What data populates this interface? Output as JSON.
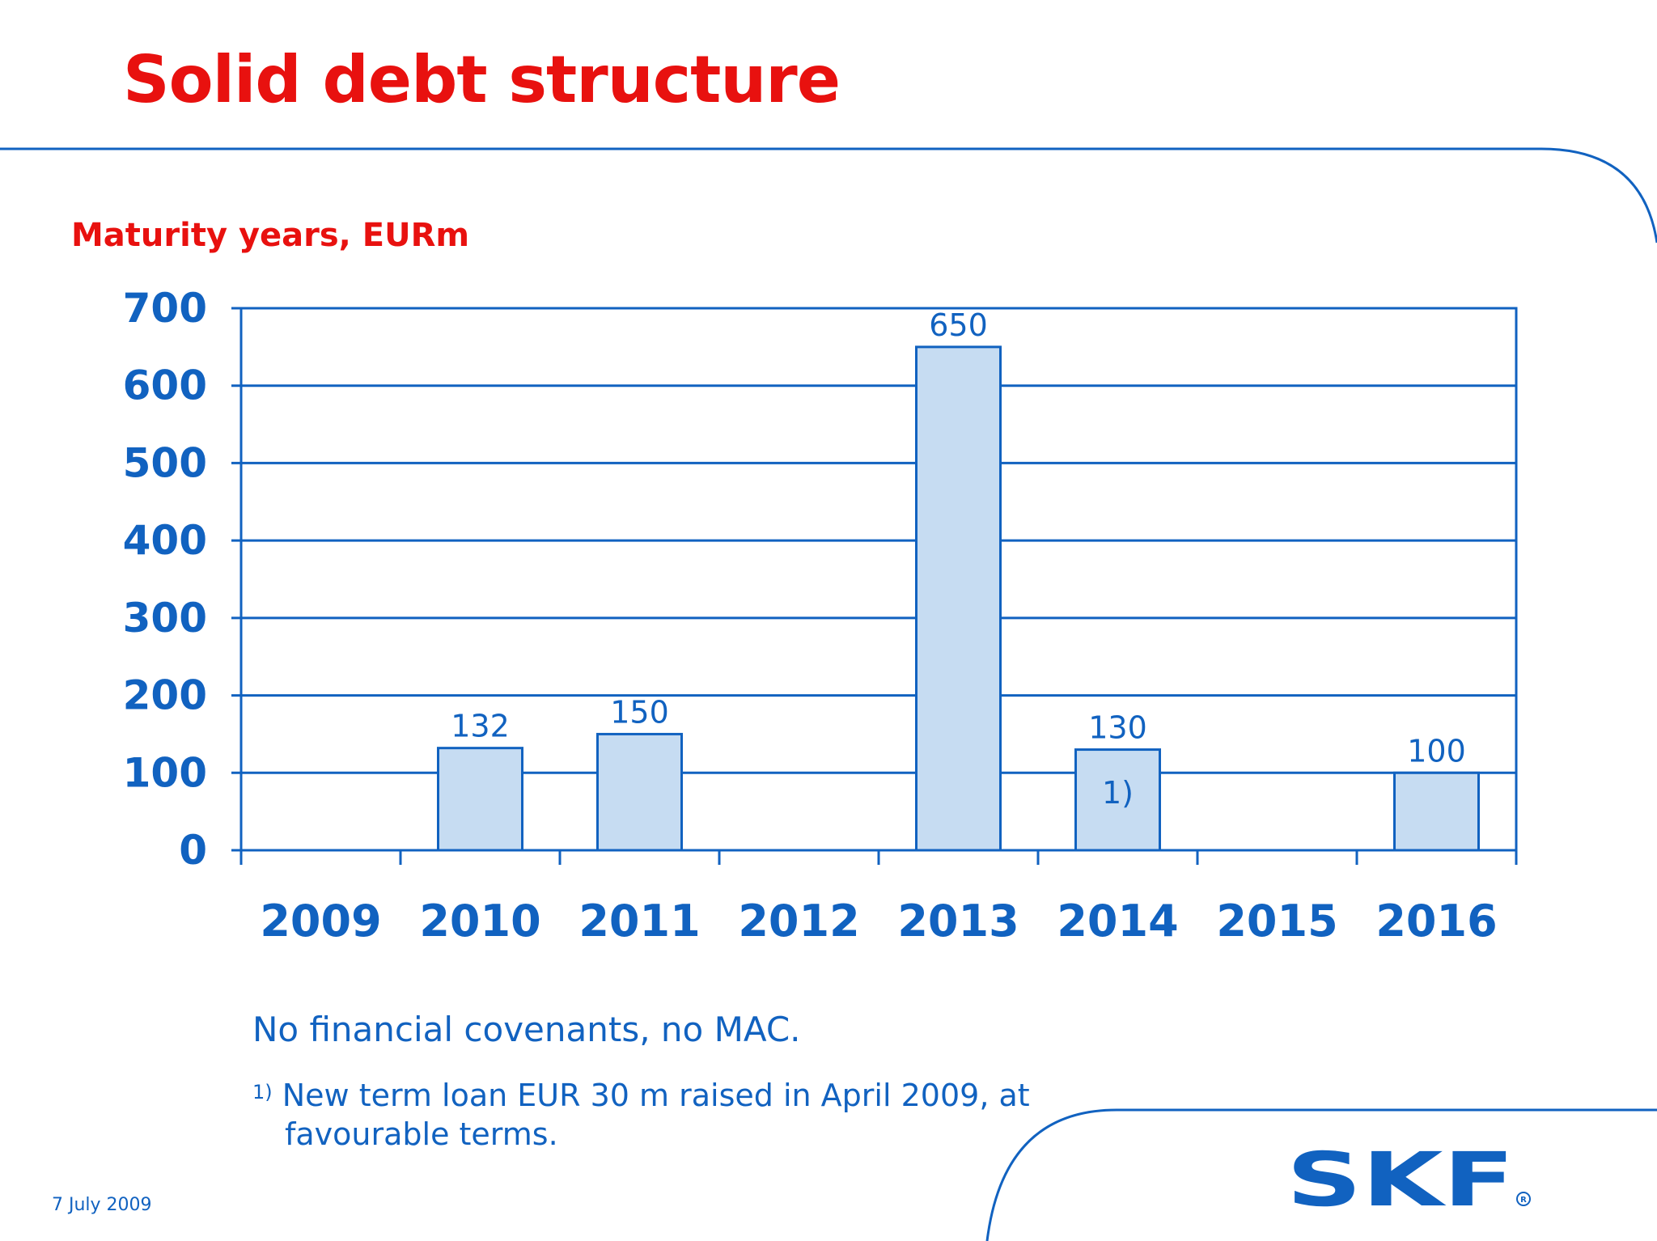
{
  "slide": {
    "title": "Solid debt structure",
    "subtitle": "Maturity years, EURm",
    "note": "No financial covenants, no MAC.",
    "footnote_marker": "1)",
    "footnote_line1": "New term loan EUR 30 m raised in April 2009, at",
    "footnote_line2": "favourable terms.",
    "date": "7 July 2009",
    "logo_text": "SKF"
  },
  "colors": {
    "title": "#e8110f",
    "axis": "#1162c0",
    "bar_fill": "#c6dcf2",
    "bar_stroke": "#1162c0"
  },
  "chart_data": {
    "type": "bar",
    "categories": [
      "2009",
      "2010",
      "2011",
      "2012",
      "2013",
      "2014",
      "2015",
      "2016"
    ],
    "values": [
      null,
      132,
      150,
      null,
      650,
      130,
      null,
      100
    ],
    "data_labels": [
      "",
      "132",
      "150",
      "",
      "650",
      "130",
      "",
      "100"
    ],
    "annotations": [
      {
        "category": "2014",
        "text": "1)"
      }
    ],
    "yticks": [
      0,
      100,
      200,
      300,
      400,
      500,
      600,
      700
    ],
    "ylim": [
      0,
      700
    ],
    "grid": true,
    "legend": "none"
  }
}
